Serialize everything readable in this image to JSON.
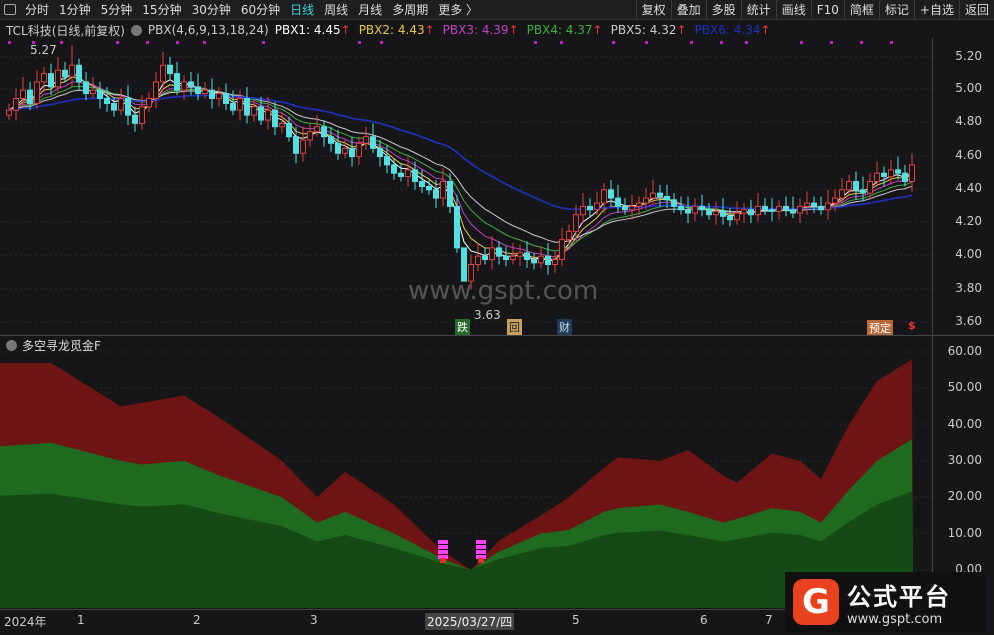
{
  "toolbar": {
    "periods": [
      "分时",
      "1分钟",
      "5分钟",
      "15分钟",
      "30分钟",
      "60分钟",
      "日线",
      "周线",
      "月线",
      "多周期",
      "更多 〉"
    ],
    "active": "日线",
    "right": [
      "复权",
      "叠加",
      "多股",
      "统计",
      "画线",
      "F10",
      "简框",
      "标记",
      "+自选",
      "返回"
    ]
  },
  "info": {
    "title": "TCL科技(日线,前复权)",
    "indicator": "PBX(4,6,9,13,18,24)",
    "values": [
      {
        "label": "PBX1: 4.45",
        "color": "#ffffff"
      },
      {
        "label": "PBX2: 4.43",
        "color": "#e8c840"
      },
      {
        "label": "PBX3: 4.39",
        "color": "#c040c0"
      },
      {
        "label": "PBX4: 4.37",
        "color": "#40b040"
      },
      {
        "label": "PBX5: 4.32",
        "color": "#cccccc"
      },
      {
        "label": "PBX6: 4.34",
        "color": "#2030c0"
      }
    ],
    "arrow": "↑"
  },
  "price_axis": [
    "5.20",
    "5.00",
    "4.80",
    "4.60",
    "4.40",
    "4.20",
    "4.00",
    "3.80",
    "3.60"
  ],
  "sub_axis": [
    "60.00",
    "50.00",
    "40.00",
    "30.00",
    "20.00",
    "10.00",
    "0.00"
  ],
  "annotations": {
    "high": "5.27",
    "low": "3.63",
    "signals": [
      "跌",
      "回",
      "财",
      "预定",
      "$"
    ]
  },
  "watermark": "www.gspt.com",
  "sub": {
    "title": "多空寻龙觅金F"
  },
  "xaxis": [
    "2024年",
    "1",
    "2",
    "3",
    "2025/03/27/四",
    "5",
    "6",
    "7"
  ],
  "logo": {
    "name": "公式平台",
    "url": "www.gspt.com"
  },
  "chart_data": {
    "type": "candlestick",
    "closes": [
      4.88,
      4.95,
      5.0,
      4.92,
      5.05,
      5.1,
      5.02,
      5.12,
      5.08,
      5.15,
      5.05,
      4.98,
      5.0,
      4.95,
      4.92,
      4.88,
      4.95,
      4.85,
      4.8,
      4.9,
      4.95,
      5.05,
      5.15,
      5.1,
      5.0,
      5.05,
      5.02,
      4.98,
      5.0,
      4.95,
      4.98,
      4.92,
      4.88,
      4.95,
      4.85,
      4.9,
      4.82,
      4.88,
      4.78,
      4.8,
      4.72,
      4.62,
      4.7,
      4.75,
      4.78,
      4.72,
      4.68,
      4.62,
      4.65,
      4.6,
      4.68,
      4.72,
      4.65,
      4.6,
      4.55,
      4.5,
      4.48,
      4.52,
      4.45,
      4.42,
      4.4,
      4.35,
      4.45,
      4.3,
      4.05,
      3.85,
      3.95,
      4.0,
      3.98,
      4.05,
      4.0,
      3.98,
      4.0,
      4.02,
      3.98,
      3.96,
      4.0,
      3.95,
      3.98,
      4.1,
      4.15,
      4.25,
      4.3,
      4.28,
      4.32,
      4.4,
      4.35,
      4.3,
      4.28,
      4.3,
      4.32,
      4.35,
      4.38,
      4.36,
      4.34,
      4.3,
      4.28,
      4.26,
      4.3,
      4.28,
      4.25,
      4.27,
      4.24,
      4.22,
      4.26,
      4.28,
      4.25,
      4.3,
      4.28,
      4.27,
      4.3,
      4.28,
      4.26,
      4.3,
      4.32,
      4.3,
      4.28,
      4.32,
      4.35,
      4.4,
      4.45,
      4.4,
      4.38,
      4.45,
      4.5,
      4.48,
      4.52,
      4.5,
      4.45,
      4.55
    ],
    "ylim": [
      3.6,
      5.3
    ],
    "sub_series": {
      "bar_index": [
        0,
        6,
        16,
        19,
        25,
        30,
        39,
        44,
        48,
        55,
        62,
        66,
        70,
        76,
        80,
        85,
        87,
        93,
        97,
        102,
        104,
        109,
        113,
        116,
        120,
        124,
        129
      ],
      "red": [
        57,
        57,
        45,
        46,
        48,
        42,
        30,
        20,
        27,
        18,
        5,
        0,
        8,
        15,
        20,
        28,
        31,
        30,
        33,
        26,
        24,
        32,
        30,
        25,
        40,
        52,
        58
      ],
      "green": [
        34,
        35,
        30,
        29,
        30,
        26,
        20,
        13,
        16,
        10,
        3,
        0,
        5,
        10,
        11,
        16,
        17,
        18,
        16,
        13,
        14,
        17,
        16,
        13,
        22,
        30,
        36
      ]
    },
    "sub_ylim": [
      0,
      60
    ]
  }
}
